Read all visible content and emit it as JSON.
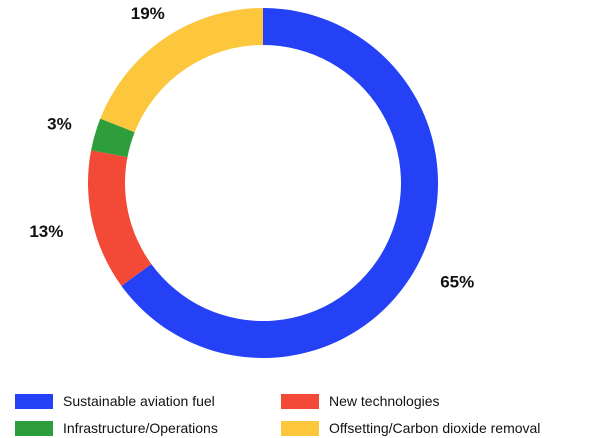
{
  "chart_data": {
    "type": "pie",
    "variant": "donut",
    "title": "",
    "categories": [
      "Sustainable aviation fuel",
      "New technologies",
      "Infrastructure/Operations",
      "Offsetting/Carbon dioxide removal"
    ],
    "values": [
      65,
      13,
      3,
      19
    ],
    "value_labels": [
      "65%",
      "13%",
      "3%",
      "19%"
    ],
    "colors": [
      "#2541f5",
      "#f24a37",
      "#2e9d3b",
      "#fcc73c"
    ],
    "legend_placement": "bottom"
  }
}
